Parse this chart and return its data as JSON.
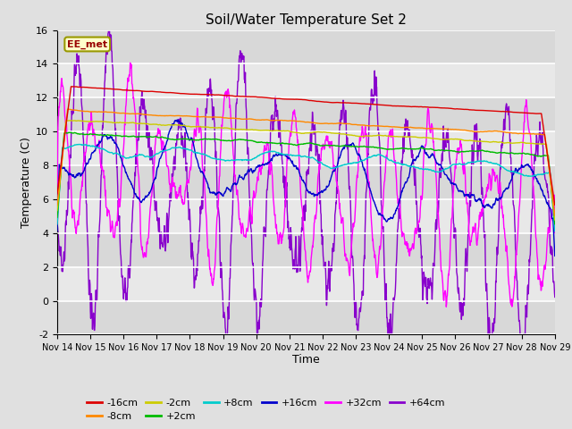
{
  "title": "Soil/Water Temperature Set 2",
  "xlabel": "Time",
  "ylabel": "Temperature (C)",
  "ylim": [
    -2,
    16
  ],
  "yticks": [
    -2,
    0,
    2,
    4,
    6,
    8,
    10,
    12,
    14,
    16
  ],
  "xtick_labels": [
    "Nov 14",
    "Nov 15",
    "Nov 16",
    "Nov 17",
    "Nov 18",
    "Nov 19",
    "Nov 20",
    "Nov 21",
    "Nov 22",
    "Nov 23",
    "Nov 24",
    "Nov 25",
    "Nov 26",
    "Nov 27",
    "Nov 28",
    "Nov 29"
  ],
  "annotation_text": "EE_met",
  "colors": {
    "-16cm": "#dd0000",
    "-8cm": "#ff8800",
    "-2cm": "#cccc00",
    "+2cm": "#00bb00",
    "+8cm": "#00cccc",
    "+16cm": "#0000cc",
    "+32cm": "#ff00ff",
    "+64cm": "#8800cc"
  },
  "bg_color": "#e0e0e0",
  "grid_color": "#ffffff",
  "band_colors": [
    "#d8d8d8",
    "#e8e8e8"
  ]
}
